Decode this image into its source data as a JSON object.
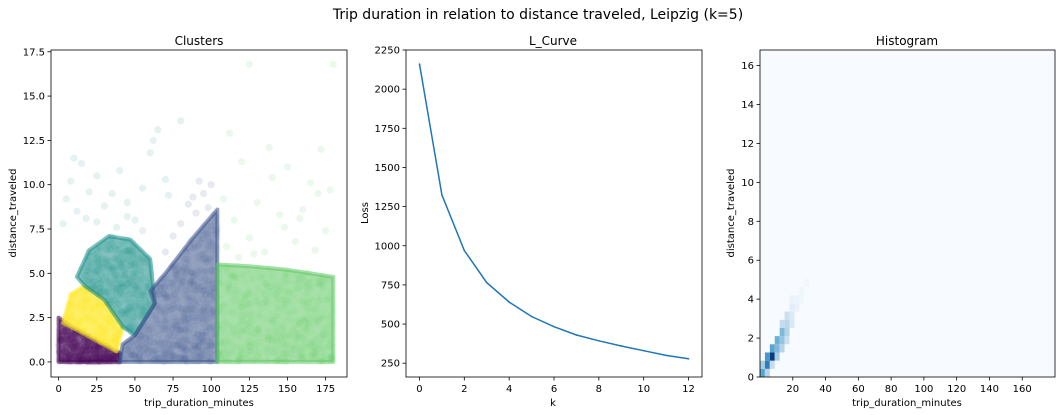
{
  "figure": {
    "suptitle": "Trip duration in relation to distance traveled, Leipzig (k=5)"
  },
  "chart_data": [
    {
      "type": "scatter",
      "title": "Clusters",
      "xlabel": "trip_duration_minutes",
      "ylabel": "distance_traveled",
      "xlim": [
        -5,
        189
      ],
      "ylim": [
        -0.85,
        17.6
      ],
      "xticks": [
        0,
        25,
        50,
        75,
        100,
        125,
        150,
        175
      ],
      "yticks": [
        0.0,
        2.5,
        5.0,
        7.5,
        10.0,
        12.5,
        15.0,
        17.5
      ],
      "ytick_labels": [
        "0.0",
        "2.5",
        "5.0",
        "7.5",
        "10.0",
        "12.5",
        "15.0",
        "17.5"
      ],
      "grid": false,
      "point_alpha": 0.06,
      "clusters": [
        {
          "color": "#440154",
          "polygon": [
            [
              0,
              0
            ],
            [
              0,
              2.5
            ],
            [
              8,
              2.0
            ],
            [
              40,
              0.5
            ],
            [
              40,
              0
            ]
          ]
        },
        {
          "color": "#fde725",
          "polygon": [
            [
              3,
              2.2
            ],
            [
              8,
              3.8
            ],
            [
              17,
              4.3
            ],
            [
              30,
              3.5
            ],
            [
              42,
              2.0
            ],
            [
              38,
              0.6
            ],
            [
              8,
              2.0
            ]
          ]
        },
        {
          "color": "#21918c",
          "polygon": [
            [
              12,
              4.8
            ],
            [
              20,
              6.3
            ],
            [
              33,
              7.1
            ],
            [
              47,
              6.9
            ],
            [
              60,
              5.8
            ],
            [
              63,
              3.3
            ],
            [
              50,
              1.5
            ],
            [
              42,
              2.0
            ],
            [
              30,
              3.5
            ],
            [
              17,
              4.3
            ]
          ]
        },
        {
          "color": "#3b528b",
          "polygon": [
            [
              40,
              0
            ],
            [
              104,
              0
            ],
            [
              104,
              8.6
            ],
            [
              88,
              7.0
            ],
            [
              70,
              5.0
            ],
            [
              60,
              4.0
            ],
            [
              63,
              3.3
            ],
            [
              50,
              1.5
            ],
            [
              42,
              1.0
            ]
          ]
        },
        {
          "color": "#5ec962",
          "polygon": [
            [
              104,
              0
            ],
            [
              180,
              0
            ],
            [
              180,
              4.8
            ],
            [
              150,
              5.2
            ],
            [
              125,
              5.4
            ],
            [
              104,
              5.5
            ]
          ]
        }
      ],
      "sparse_points": [
        {
          "color": "#21918c",
          "points": [
            [
              5,
              9.2
            ],
            [
              8,
              10.2
            ],
            [
              12,
              8.5
            ],
            [
              15,
              11.2
            ],
            [
              20,
              9.6
            ],
            [
              25,
              10.5
            ],
            [
              30,
              8.8
            ],
            [
              35,
              9.5
            ],
            [
              40,
              10.8
            ],
            [
              45,
              9.0
            ],
            [
              50,
              8.0
            ],
            [
              55,
              9.8
            ],
            [
              60,
              11.8
            ],
            [
              65,
              13.1
            ],
            [
              70,
              10.3
            ],
            [
              80,
              13.6
            ],
            [
              45,
              8.2
            ],
            [
              38,
              7.6
            ],
            [
              25,
              7.9
            ],
            [
              55,
              7.4
            ],
            [
              10,
              11.5
            ],
            [
              3,
              7.8
            ],
            [
              18,
              8.1
            ],
            [
              62,
              12.5
            ],
            [
              72,
              9.4
            ]
          ]
        },
        {
          "color": "#3b528b",
          "points": [
            [
              70,
              6.2
            ],
            [
              80,
              7.8
            ],
            [
              90,
              8.4
            ],
            [
              95,
              9.5
            ],
            [
              100,
              10.0
            ],
            [
              85,
              8.9
            ],
            [
              75,
              7.1
            ],
            [
              98,
              8.7
            ],
            [
              92,
              10.2
            ],
            [
              88,
              9.3
            ]
          ]
        },
        {
          "color": "#5ec962",
          "points": [
            [
              110,
              6.5
            ],
            [
              115,
              8.0
            ],
            [
              125,
              7.0
            ],
            [
              130,
              9.0
            ],
            [
              140,
              10.4
            ],
            [
              150,
              11.0
            ],
            [
              160,
              8.6
            ],
            [
              170,
              9.5
            ],
            [
              175,
              7.4
            ],
            [
              108,
              9.2
            ],
            [
              120,
              11.3
            ],
            [
              135,
              6.2
            ],
            [
              145,
              8.3
            ],
            [
              155,
              6.8
            ],
            [
              165,
              10.1
            ],
            [
              178,
              9.7
            ],
            [
              118,
              5.9
            ],
            [
              128,
              6.1
            ],
            [
              148,
              7.6
            ],
            [
              168,
              6.3
            ],
            [
              112,
              12.9
            ],
            [
              138,
              12.1
            ],
            [
              125,
              16.8
            ],
            [
              180,
              16.8
            ],
            [
              158,
              8.1
            ],
            [
              172,
              12.0
            ]
          ]
        }
      ]
    },
    {
      "type": "line",
      "title": "L_Curve",
      "xlabel": "k",
      "ylabel": "Loss",
      "xlim": [
        -0.6,
        12.6
      ],
      "ylim": [
        162,
        2250
      ],
      "xticks": [
        0,
        2,
        4,
        6,
        8,
        10,
        12
      ],
      "yticks": [
        250,
        500,
        750,
        1000,
        1250,
        1500,
        1750,
        2000,
        2250
      ],
      "grid": false,
      "series": [
        {
          "color": "#1f77b4",
          "x": [
            0,
            1,
            2,
            3,
            4,
            5,
            6,
            7,
            8,
            9,
            10,
            11,
            12
          ],
          "values": [
            2160,
            1325,
            970,
            765,
            640,
            548,
            483,
            430,
            393,
            360,
            330,
            300,
            278
          ]
        }
      ]
    },
    {
      "type": "heatmap",
      "title": "Histogram",
      "xlabel": "trip_duration_minutes",
      "ylabel": "distance_traveled",
      "xlim": [
        0,
        180
      ],
      "ylim": [
        0,
        16.8
      ],
      "xticks": [
        20,
        40,
        60,
        80,
        100,
        120,
        140,
        160
      ],
      "yticks": [
        0,
        2,
        4,
        6,
        8,
        10,
        12,
        14,
        16
      ],
      "colormap": "Blues",
      "background": "#f7fbff",
      "cells": [
        {
          "x": 0,
          "y": 0.0,
          "w": 3,
          "h": 0.42,
          "v": 0.55
        },
        {
          "x": 0,
          "y": 0.42,
          "w": 3,
          "h": 0.42,
          "v": 0.35
        },
        {
          "x": 3,
          "y": 0.0,
          "w": 3,
          "h": 0.42,
          "v": 0.3
        },
        {
          "x": 3,
          "y": 0.42,
          "w": 3,
          "h": 0.42,
          "v": 0.7
        },
        {
          "x": 3,
          "y": 0.84,
          "w": 3,
          "h": 0.42,
          "v": 0.6
        },
        {
          "x": 6,
          "y": 0.42,
          "w": 3,
          "h": 0.42,
          "v": 0.25
        },
        {
          "x": 6,
          "y": 0.84,
          "w": 3,
          "h": 0.42,
          "v": 0.95
        },
        {
          "x": 6,
          "y": 1.26,
          "w": 3,
          "h": 0.42,
          "v": 0.55
        },
        {
          "x": 9,
          "y": 0.84,
          "w": 3,
          "h": 0.42,
          "v": 0.35
        },
        {
          "x": 9,
          "y": 1.26,
          "w": 3,
          "h": 0.42,
          "v": 0.45
        },
        {
          "x": 9,
          "y": 1.68,
          "w": 3,
          "h": 0.42,
          "v": 0.5
        },
        {
          "x": 12,
          "y": 1.26,
          "w": 3,
          "h": 0.42,
          "v": 0.3
        },
        {
          "x": 12,
          "y": 1.68,
          "w": 3,
          "h": 0.42,
          "v": 0.4
        },
        {
          "x": 12,
          "y": 2.1,
          "w": 3,
          "h": 0.42,
          "v": 0.45
        },
        {
          "x": 12,
          "y": 2.52,
          "w": 3,
          "h": 0.42,
          "v": 0.25
        },
        {
          "x": 15,
          "y": 1.68,
          "w": 3,
          "h": 0.42,
          "v": 0.22
        },
        {
          "x": 15,
          "y": 2.1,
          "w": 3,
          "h": 0.42,
          "v": 0.3
        },
        {
          "x": 15,
          "y": 2.52,
          "w": 3,
          "h": 0.42,
          "v": 0.28
        },
        {
          "x": 15,
          "y": 2.94,
          "w": 3,
          "h": 0.42,
          "v": 0.22
        },
        {
          "x": 18,
          "y": 2.52,
          "w": 3,
          "h": 0.42,
          "v": 0.15
        },
        {
          "x": 18,
          "y": 2.94,
          "w": 3,
          "h": 0.42,
          "v": 0.14
        },
        {
          "x": 18,
          "y": 3.36,
          "w": 3,
          "h": 0.42,
          "v": 0.1
        },
        {
          "x": 21,
          "y": 3.36,
          "w": 3,
          "h": 0.42,
          "v": 0.07
        },
        {
          "x": 21,
          "y": 3.78,
          "w": 3,
          "h": 0.42,
          "v": 0.05
        },
        {
          "x": 24,
          "y": 4.2,
          "w": 3,
          "h": 0.42,
          "v": 0.04
        },
        {
          "x": 27,
          "y": 4.62,
          "w": 3,
          "h": 0.42,
          "v": 0.03
        },
        {
          "x": 18,
          "y": 3.78,
          "w": 3,
          "h": 0.42,
          "v": 0.06
        },
        {
          "x": 24,
          "y": 3.78,
          "w": 3,
          "h": 0.42,
          "v": 0.04
        }
      ]
    }
  ]
}
